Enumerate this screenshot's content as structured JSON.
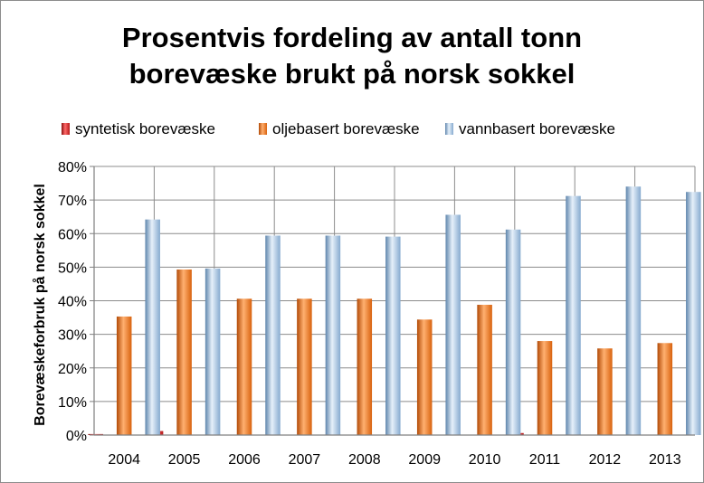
{
  "title_line1": "Prosentvis fordeling av antall tonn",
  "title_line2": "borevæske brukt på norsk sokkel",
  "chart_data": {
    "type": "bar",
    "title": "Prosentvis fordeling av antall tonn borevæske brukt på norsk sokkel",
    "xlabel": "",
    "ylabel": "Borevæskeforbruk på norsk sokkel",
    "categories": [
      "2004",
      "2005",
      "2006",
      "2007",
      "2008",
      "2009",
      "2010",
      "2011",
      "2012",
      "2013"
    ],
    "series": [
      {
        "name": "syntetisk borevæske",
        "color": "#d62a2a",
        "values": [
          0.3,
          1.2,
          0.0,
          0.0,
          0.0,
          0.0,
          0.0,
          0.6,
          0.0,
          0.0
        ]
      },
      {
        "name": "oljebasert borevæske",
        "color": "#e8741c",
        "values": [
          35.3,
          49.3,
          40.6,
          40.6,
          40.6,
          34.4,
          38.8,
          28.0,
          25.8,
          27.4
        ]
      },
      {
        "name": "vannbasert borevæske",
        "color": "#93b5d6",
        "values": [
          64.2,
          49.6,
          59.4,
          59.4,
          59.1,
          65.6,
          61.2,
          71.2,
          74.0,
          72.4
        ]
      }
    ],
    "ylim": [
      0,
      80
    ],
    "yticks": [
      "0%",
      "10%",
      "20%",
      "30%",
      "40%",
      "50%",
      "60%",
      "70%",
      "80%"
    ],
    "grid": "vertical and horizontal",
    "legend_position": "top"
  }
}
